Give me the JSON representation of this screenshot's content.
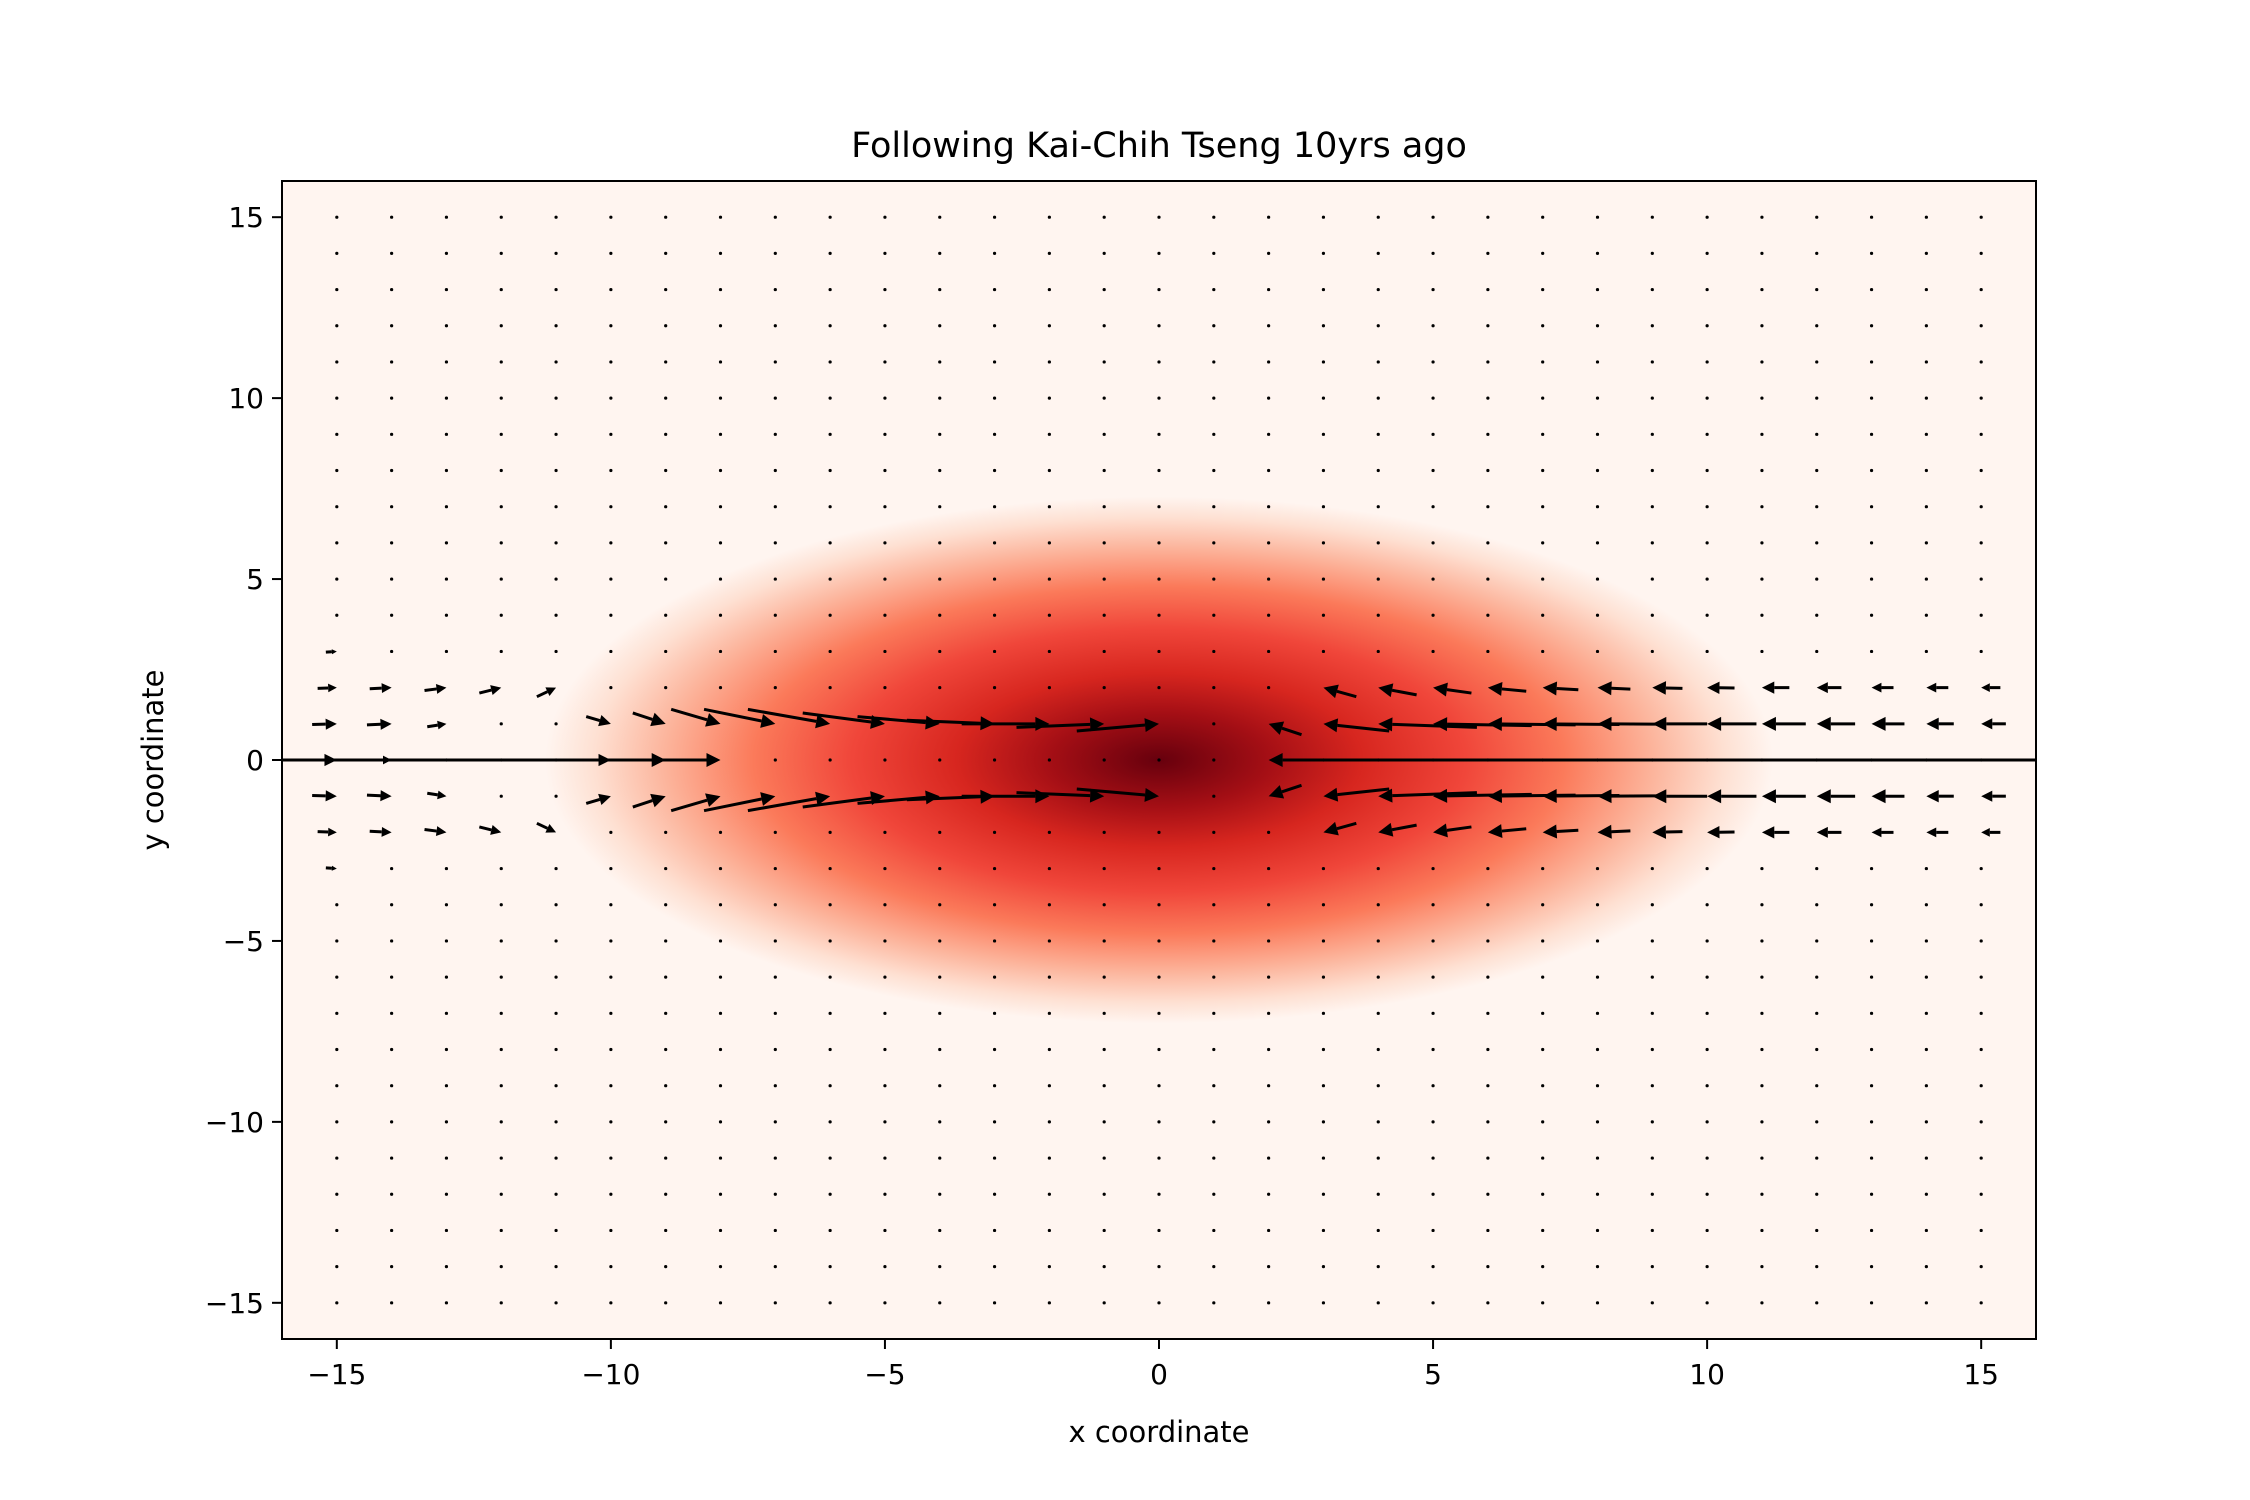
{
  "chart_data": {
    "type": "heatmap",
    "overlay": "quiver",
    "title": "Following Kai-Chih Tseng 10yrs ago",
    "xlabel": "x coordinate",
    "ylabel": "y coordinate",
    "xlim": [
      -16,
      16
    ],
    "ylim": [
      -16,
      16
    ],
    "xticks": [
      -15,
      -10,
      -5,
      0,
      5,
      10,
      15
    ],
    "yticks": [
      -15,
      -10,
      -5,
      0,
      5,
      10,
      15
    ],
    "xtick_labels": [
      "−15",
      "−10",
      "−5",
      "0",
      "5",
      "10",
      "15"
    ],
    "ytick_labels": [
      "−15",
      "−10",
      "−5",
      "0",
      "5",
      "10",
      "15"
    ],
    "grid": false,
    "legend": "none",
    "colormap": "Reds",
    "heatmap_field": {
      "form": "gaussian",
      "center_x": 0,
      "center_y": 0,
      "sigma_x": 4.0,
      "sigma_y": 2.6,
      "peak": 1.0,
      "value_range": [
        0,
        1
      ]
    },
    "quiver_grid": {
      "x_start": -15,
      "x_end": 15,
      "y_start": -15,
      "y_end": 15,
      "step": 1
    },
    "quiver_vectors": [
      {
        "x": -15,
        "y": 2,
        "u": 0.35,
        "v": 0.02
      },
      {
        "x": -15,
        "y": 1,
        "u": 0.45,
        "v": 0.02
      },
      {
        "x": -15,
        "y": 0,
        "u": 0.5,
        "v": 0
      },
      {
        "x": -15,
        "y": -1,
        "u": 0.45,
        "v": -0.02
      },
      {
        "x": -15,
        "y": -2,
        "u": 0.35,
        "v": -0.02
      },
      {
        "x": -15,
        "y": 3,
        "u": 0.2,
        "v": 0.02
      },
      {
        "x": -15,
        "y": -3,
        "u": 0.2,
        "v": -0.02
      },
      {
        "x": -14,
        "y": 2,
        "u": 0.4,
        "v": 0.03
      },
      {
        "x": -14,
        "y": 1,
        "u": 0.45,
        "v": 0.03
      },
      {
        "x": -14,
        "y": 0,
        "u": 0.35,
        "v": 0
      },
      {
        "x": -14,
        "y": -1,
        "u": 0.45,
        "v": -0.03
      },
      {
        "x": -14,
        "y": -2,
        "u": 0.4,
        "v": -0.03
      },
      {
        "x": -13,
        "y": 2,
        "u": 0.4,
        "v": 0.08
      },
      {
        "x": -13,
        "y": 1,
        "u": 0.35,
        "v": 0.08
      },
      {
        "x": -13,
        "y": -1,
        "u": 0.35,
        "v": -0.08
      },
      {
        "x": -13,
        "y": -2,
        "u": 0.4,
        "v": -0.08
      },
      {
        "x": -12,
        "y": 2,
        "u": 0.4,
        "v": 0.15
      },
      {
        "x": -12,
        "y": -2,
        "u": 0.4,
        "v": -0.15
      },
      {
        "x": -11,
        "y": 2,
        "u": 0.35,
        "v": 0.25
      },
      {
        "x": -11,
        "y": -2,
        "u": 0.35,
        "v": -0.25
      },
      {
        "x": -10,
        "y": 0,
        "u": 0.5,
        "v": 0
      },
      {
        "x": -10,
        "y": 1,
        "u": 0.45,
        "v": -0.2
      },
      {
        "x": -10,
        "y": -1,
        "u": 0.45,
        "v": 0.2
      },
      {
        "x": -9,
        "y": 0,
        "u": 1.0,
        "v": 0
      },
      {
        "x": -9,
        "y": 1,
        "u": 0.6,
        "v": -0.3
      },
      {
        "x": -9,
        "y": -1,
        "u": 0.6,
        "v": 0.3
      },
      {
        "x": -8,
        "y": 0,
        "u": 12,
        "v": 0
      },
      {
        "x": -8,
        "y": 1,
        "u": 0.9,
        "v": -0.4
      },
      {
        "x": -8,
        "y": -1,
        "u": 0.9,
        "v": 0.4
      },
      {
        "x": -7,
        "y": 1,
        "u": 1.3,
        "v": -0.4
      },
      {
        "x": -7,
        "y": -1,
        "u": 1.3,
        "v": 0.4
      },
      {
        "x": -6,
        "y": 1,
        "u": 1.5,
        "v": -0.4
      },
      {
        "x": -6,
        "y": -1,
        "u": 1.5,
        "v": 0.4
      },
      {
        "x": -5,
        "y": 1,
        "u": 1.5,
        "v": -0.3
      },
      {
        "x": -5,
        "y": -1,
        "u": 1.5,
        "v": 0.3
      },
      {
        "x": -4,
        "y": 1,
        "u": 1.5,
        "v": -0.2
      },
      {
        "x": -4,
        "y": -1,
        "u": 1.5,
        "v": 0.2
      },
      {
        "x": -3,
        "y": 1,
        "u": 1.6,
        "v": -0.1
      },
      {
        "x": -3,
        "y": -1,
        "u": 1.6,
        "v": 0.1
      },
      {
        "x": -2,
        "y": 1,
        "u": 1.6,
        "v": 0
      },
      {
        "x": -2,
        "y": -1,
        "u": 1.6,
        "v": 0
      },
      {
        "x": -1,
        "y": 1,
        "u": 1.6,
        "v": 0.1
      },
      {
        "x": -1,
        "y": -1,
        "u": 1.6,
        "v": -0.1
      },
      {
        "x": 0,
        "y": 1,
        "u": 1.5,
        "v": 0.2
      },
      {
        "x": 0,
        "y": -1,
        "u": 1.5,
        "v": -0.2
      },
      {
        "x": 2,
        "y": 0,
        "u": -15,
        "v": 0
      },
      {
        "x": 2,
        "y": 1,
        "u": -0.6,
        "v": 0.3
      },
      {
        "x": 2,
        "y": -1,
        "u": -0.6,
        "v": -0.3
      },
      {
        "x": 3,
        "y": 1,
        "u": -1.2,
        "v": 0.2
      },
      {
        "x": 3,
        "y": -1,
        "u": -1.2,
        "v": -0.2
      },
      {
        "x": 4,
        "y": 1,
        "u": -1.8,
        "v": 0.1
      },
      {
        "x": 4,
        "y": -1,
        "u": -1.8,
        "v": -0.1
      },
      {
        "x": 5,
        "y": 1,
        "u": -1.8,
        "v": 0.05
      },
      {
        "x": 5,
        "y": -1,
        "u": -1.8,
        "v": -0.05
      },
      {
        "x": 6,
        "y": 1,
        "u": -1.6,
        "v": 0.03
      },
      {
        "x": 6,
        "y": -1,
        "u": -1.6,
        "v": -0.03
      },
      {
        "x": 7,
        "y": 1,
        "u": -1.4,
        "v": 0.02
      },
      {
        "x": 7,
        "y": -1,
        "u": -1.4,
        "v": -0.02
      },
      {
        "x": 8,
        "y": 1,
        "u": -1.2,
        "v": 0.01
      },
      {
        "x": 8,
        "y": -1,
        "u": -1.2,
        "v": -0.01
      },
      {
        "x": 9,
        "y": 1,
        "u": -1.0,
        "v": 0
      },
      {
        "x": 9,
        "y": -1,
        "u": -1.0,
        "v": 0
      },
      {
        "x": 10,
        "y": 1,
        "u": -0.9,
        "v": 0
      },
      {
        "x": 10,
        "y": -1,
        "u": -0.9,
        "v": 0
      },
      {
        "x": 11,
        "y": 1,
        "u": -0.8,
        "v": 0
      },
      {
        "x": 11,
        "y": -1,
        "u": -0.8,
        "v": 0
      },
      {
        "x": 12,
        "y": 1,
        "u": -0.7,
        "v": 0
      },
      {
        "x": 12,
        "y": -1,
        "u": -0.7,
        "v": 0
      },
      {
        "x": 13,
        "y": 1,
        "u": -0.6,
        "v": 0
      },
      {
        "x": 13,
        "y": -1,
        "u": -0.6,
        "v": 0
      },
      {
        "x": 14,
        "y": 1,
        "u": -0.5,
        "v": 0
      },
      {
        "x": 14,
        "y": -1,
        "u": -0.5,
        "v": 0
      },
      {
        "x": 15,
        "y": 1,
        "u": -0.45,
        "v": 0
      },
      {
        "x": 15,
        "y": -1,
        "u": -0.45,
        "v": 0
      },
      {
        "x": 3,
        "y": 2,
        "u": -0.6,
        "v": 0.25
      },
      {
        "x": 3,
        "y": -2,
        "u": -0.6,
        "v": -0.25
      },
      {
        "x": 4,
        "y": 2,
        "u": -0.7,
        "v": 0.2
      },
      {
        "x": 4,
        "y": -2,
        "u": -0.7,
        "v": -0.2
      },
      {
        "x": 5,
        "y": 2,
        "u": -0.7,
        "v": 0.15
      },
      {
        "x": 5,
        "y": -2,
        "u": -0.7,
        "v": -0.15
      },
      {
        "x": 6,
        "y": 2,
        "u": -0.7,
        "v": 0.1
      },
      {
        "x": 6,
        "y": -2,
        "u": -0.7,
        "v": -0.1
      },
      {
        "x": 7,
        "y": 2,
        "u": -0.65,
        "v": 0.06
      },
      {
        "x": 7,
        "y": -2,
        "u": -0.65,
        "v": -0.06
      },
      {
        "x": 8,
        "y": 2,
        "u": -0.6,
        "v": 0.04
      },
      {
        "x": 8,
        "y": -2,
        "u": -0.6,
        "v": -0.04
      },
      {
        "x": 9,
        "y": 2,
        "u": -0.55,
        "v": 0.02
      },
      {
        "x": 9,
        "y": -2,
        "u": -0.55,
        "v": -0.02
      },
      {
        "x": 10,
        "y": 2,
        "u": -0.5,
        "v": 0.01
      },
      {
        "x": 10,
        "y": -2,
        "u": -0.5,
        "v": -0.01
      },
      {
        "x": 11,
        "y": 2,
        "u": -0.5,
        "v": 0
      },
      {
        "x": 11,
        "y": -2,
        "u": -0.5,
        "v": 0
      },
      {
        "x": 12,
        "y": 2,
        "u": -0.45,
        "v": 0
      },
      {
        "x": 12,
        "y": -2,
        "u": -0.45,
        "v": 0
      },
      {
        "x": 13,
        "y": 2,
        "u": -0.4,
        "v": 0
      },
      {
        "x": 13,
        "y": -2,
        "u": -0.4,
        "v": 0
      },
      {
        "x": 14,
        "y": 2,
        "u": -0.4,
        "v": 0
      },
      {
        "x": 14,
        "y": -2,
        "u": -0.4,
        "v": 0
      },
      {
        "x": 15,
        "y": 2,
        "u": -0.35,
        "v": 0
      },
      {
        "x": 15,
        "y": -2,
        "u": -0.35,
        "v": 0
      }
    ]
  }
}
